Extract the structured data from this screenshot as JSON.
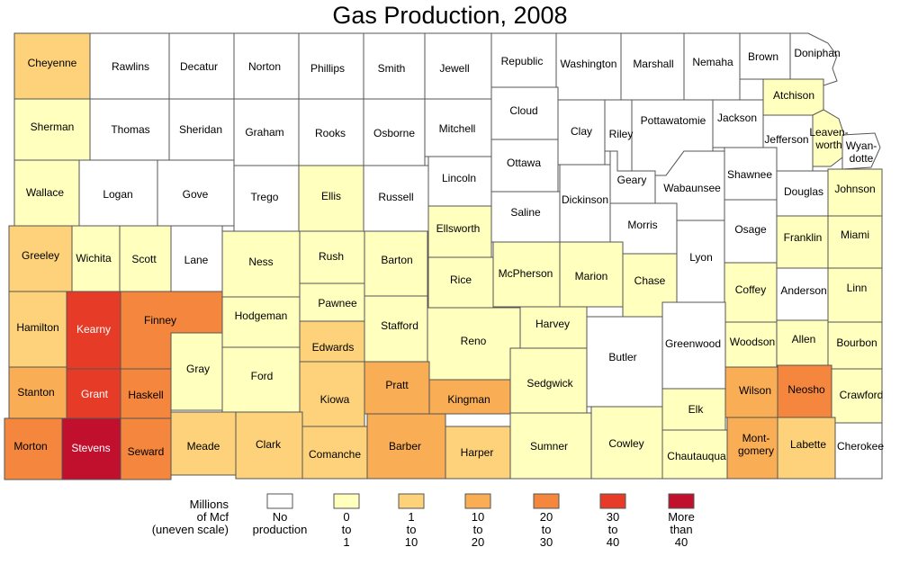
{
  "title": "Gas Production, 2008",
  "legend": {
    "title_lines": [
      "Millions",
      "of Mcf",
      "(uneven scale)"
    ],
    "items": [
      {
        "lines": [
          "No",
          "production"
        ],
        "color": "#ffffff"
      },
      {
        "lines": [
          "0",
          "to",
          "1"
        ],
        "color": "#ffffbe"
      },
      {
        "lines": [
          "1",
          "to",
          "10"
        ],
        "color": "#fdd27a"
      },
      {
        "lines": [
          "10",
          "to",
          "20"
        ],
        "color": "#f9ad55"
      },
      {
        "lines": [
          "20",
          "to",
          "30"
        ],
        "color": "#f4863e"
      },
      {
        "lines": [
          "30",
          "to",
          "40"
        ],
        "color": "#e63b27"
      },
      {
        "lines": [
          "More",
          "than",
          "40"
        ],
        "color": "#c0102e"
      }
    ]
  },
  "counties": [
    {
      "name": "Cheyenne",
      "cls": 2
    },
    {
      "name": "Rawlins",
      "cls": 0
    },
    {
      "name": "Decatur",
      "cls": 0
    },
    {
      "name": "Norton",
      "cls": 0
    },
    {
      "name": "Phillips",
      "cls": 0
    },
    {
      "name": "Smith",
      "cls": 0
    },
    {
      "name": "Jewell",
      "cls": 0
    },
    {
      "name": "Republic",
      "cls": 0
    },
    {
      "name": "Washington",
      "cls": 0
    },
    {
      "name": "Marshall",
      "cls": 0
    },
    {
      "name": "Nemaha",
      "cls": 0
    },
    {
      "name": "Brown",
      "cls": 0
    },
    {
      "name": "Doniphan",
      "cls": 0
    },
    {
      "name": "Sherman",
      "cls": 1
    },
    {
      "name": "Thomas",
      "cls": 0
    },
    {
      "name": "Sheridan",
      "cls": 0
    },
    {
      "name": "Graham",
      "cls": 0
    },
    {
      "name": "Rooks",
      "cls": 0
    },
    {
      "name": "Osborne",
      "cls": 0
    },
    {
      "name": "Mitchell",
      "cls": 0
    },
    {
      "name": "Cloud",
      "cls": 0
    },
    {
      "name": "Clay",
      "cls": 0
    },
    {
      "name": "Riley",
      "cls": 0
    },
    {
      "name": "Pottawatomie",
      "cls": 0
    },
    {
      "name": "Jackson",
      "cls": 0
    },
    {
      "name": "Atchison",
      "cls": 1
    },
    {
      "name": "Jefferson",
      "cls": 0
    },
    {
      "name": "Leavenworth",
      "cls": 1
    },
    {
      "name": "Wyandotte",
      "cls": 0
    },
    {
      "name": "Wallace",
      "cls": 1
    },
    {
      "name": "Logan",
      "cls": 0
    },
    {
      "name": "Gove",
      "cls": 0
    },
    {
      "name": "Trego",
      "cls": 0
    },
    {
      "name": "Ellis",
      "cls": 1
    },
    {
      "name": "Russell",
      "cls": 0
    },
    {
      "name": "Lincoln",
      "cls": 0
    },
    {
      "name": "Ottawa",
      "cls": 0
    },
    {
      "name": "Saline",
      "cls": 0
    },
    {
      "name": "Dickinson",
      "cls": 0
    },
    {
      "name": "Geary",
      "cls": 0
    },
    {
      "name": "Morris",
      "cls": 0
    },
    {
      "name": "Wabaunsee",
      "cls": 0
    },
    {
      "name": "Shawnee",
      "cls": 0
    },
    {
      "name": "Douglas",
      "cls": 0
    },
    {
      "name": "Johnson",
      "cls": 1
    },
    {
      "name": "Greeley",
      "cls": 2
    },
    {
      "name": "Wichita",
      "cls": 1
    },
    {
      "name": "Scott",
      "cls": 1
    },
    {
      "name": "Lane",
      "cls": 0
    },
    {
      "name": "Ness",
      "cls": 1
    },
    {
      "name": "Rush",
      "cls": 1
    },
    {
      "name": "Barton",
      "cls": 1
    },
    {
      "name": "Ellsworth",
      "cls": 1
    },
    {
      "name": "Rice",
      "cls": 1
    },
    {
      "name": "McPherson",
      "cls": 1
    },
    {
      "name": "Marion",
      "cls": 1
    },
    {
      "name": "Chase",
      "cls": 1
    },
    {
      "name": "Lyon",
      "cls": 0
    },
    {
      "name": "Osage",
      "cls": 0
    },
    {
      "name": "Franklin",
      "cls": 1
    },
    {
      "name": "Miami",
      "cls": 1
    },
    {
      "name": "Coffey",
      "cls": 1
    },
    {
      "name": "Anderson",
      "cls": 0
    },
    {
      "name": "Linn",
      "cls": 1
    },
    {
      "name": "Hamilton",
      "cls": 2
    },
    {
      "name": "Kearny",
      "cls": 5
    },
    {
      "name": "Finney",
      "cls": 4
    },
    {
      "name": "Hodgeman",
      "cls": 1
    },
    {
      "name": "Pawnee",
      "cls": 1
    },
    {
      "name": "Stafford",
      "cls": 1
    },
    {
      "name": "Edwards",
      "cls": 2
    },
    {
      "name": "Reno",
      "cls": 1
    },
    {
      "name": "Harvey",
      "cls": 1
    },
    {
      "name": "Butler",
      "cls": 0
    },
    {
      "name": "Greenwood",
      "cls": 0
    },
    {
      "name": "Woodson",
      "cls": 1
    },
    {
      "name": "Allen",
      "cls": 1
    },
    {
      "name": "Bourbon",
      "cls": 1
    },
    {
      "name": "Stanton",
      "cls": 3
    },
    {
      "name": "Grant",
      "cls": 5
    },
    {
      "name": "Haskell",
      "cls": 4
    },
    {
      "name": "Gray",
      "cls": 1
    },
    {
      "name": "Ford",
      "cls": 1
    },
    {
      "name": "Kiowa",
      "cls": 2
    },
    {
      "name": "Pratt",
      "cls": 3
    },
    {
      "name": "Kingman",
      "cls": 3
    },
    {
      "name": "Sedgwick",
      "cls": 1
    },
    {
      "name": "Elk",
      "cls": 1
    },
    {
      "name": "Wilson",
      "cls": 3
    },
    {
      "name": "Neosho",
      "cls": 4
    },
    {
      "name": "Crawford",
      "cls": 1
    },
    {
      "name": "Morton",
      "cls": 4
    },
    {
      "name": "Stevens",
      "cls": 6
    },
    {
      "name": "Seward",
      "cls": 4
    },
    {
      "name": "Meade",
      "cls": 2
    },
    {
      "name": "Clark",
      "cls": 2
    },
    {
      "name": "Comanche",
      "cls": 2
    },
    {
      "name": "Barber",
      "cls": 3
    },
    {
      "name": "Harper",
      "cls": 2
    },
    {
      "name": "Sumner",
      "cls": 1
    },
    {
      "name": "Cowley",
      "cls": 1
    },
    {
      "name": "Chautauqua",
      "cls": 1
    },
    {
      "name": "Montgomery",
      "cls": 3
    },
    {
      "name": "Labette",
      "cls": 2
    },
    {
      "name": "Cherokee",
      "cls": 0
    }
  ],
  "label_overrides": {
    "Doniphan": [
      "Doniphan"
    ],
    "Leavenworth": [
      "Leaven-",
      "worth"
    ],
    "Wyandotte": [
      "Wyan-",
      "dotte"
    ],
    "Montgomery": [
      "Mont-",
      "gomery"
    ]
  }
}
